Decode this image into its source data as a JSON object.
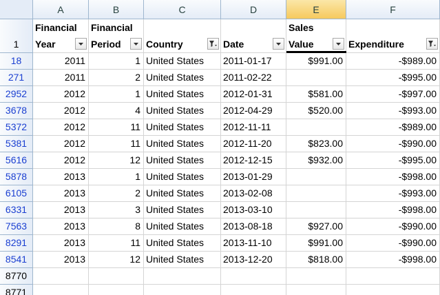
{
  "column_headers": [
    "A",
    "B",
    "C",
    "D",
    "E",
    "F"
  ],
  "header_row": {
    "row_number": "1",
    "cells": [
      {
        "line1": "Financial",
        "line2": "Year",
        "filter": "dropdown"
      },
      {
        "line1": "Financial",
        "line2": "Period",
        "filter": "dropdown"
      },
      {
        "line1": null,
        "line2": "Country",
        "filter": "funnel"
      },
      {
        "line1": null,
        "line2": "Date",
        "filter": "dropdown"
      },
      {
        "line1": "Sales",
        "line2": "Value",
        "filter": "dropdown"
      },
      {
        "line1": null,
        "line2": "Expenditure",
        "filter": "funnel"
      }
    ]
  },
  "rows": [
    {
      "row_number": "18",
      "cells": [
        "2011",
        "1",
        "United States",
        "2011-01-17",
        "$991.00",
        "-$989.00"
      ]
    },
    {
      "row_number": "271",
      "cells": [
        "2011",
        "2",
        "United States",
        "2011-02-22",
        null,
        "-$995.00"
      ]
    },
    {
      "row_number": "2952",
      "cells": [
        "2012",
        "1",
        "United States",
        "2012-01-31",
        "$581.00",
        "-$997.00"
      ]
    },
    {
      "row_number": "3678",
      "cells": [
        "2012",
        "4",
        "United States",
        "2012-04-29",
        "$520.00",
        "-$993.00"
      ]
    },
    {
      "row_number": "5372",
      "cells": [
        "2012",
        "11",
        "United States",
        "2012-11-11",
        null,
        "-$989.00"
      ]
    },
    {
      "row_number": "5381",
      "cells": [
        "2012",
        "11",
        "United States",
        "2012-11-20",
        "$823.00",
        "-$990.00"
      ]
    },
    {
      "row_number": "5616",
      "cells": [
        "2012",
        "12",
        "United States",
        "2012-12-15",
        "$932.00",
        "-$995.00"
      ]
    },
    {
      "row_number": "5878",
      "cells": [
        "2013",
        "1",
        "United States",
        "2013-01-29",
        null,
        "-$998.00"
      ]
    },
    {
      "row_number": "6105",
      "cells": [
        "2013",
        "2",
        "United States",
        "2013-02-08",
        null,
        "-$993.00"
      ]
    },
    {
      "row_number": "6331",
      "cells": [
        "2013",
        "3",
        "United States",
        "2013-03-10",
        null,
        "-$998.00"
      ]
    },
    {
      "row_number": "7563",
      "cells": [
        "2013",
        "8",
        "United States",
        "2013-08-18",
        "$927.00",
        "-$990.00"
      ]
    },
    {
      "row_number": "8291",
      "cells": [
        "2013",
        "11",
        "United States",
        "2013-11-10",
        "$991.00",
        "-$990.00"
      ]
    },
    {
      "row_number": "8541",
      "cells": [
        "2013",
        "12",
        "United States",
        "2013-12-20",
        "$818.00",
        "-$998.00"
      ]
    },
    {
      "row_number": "8770",
      "cells": null
    },
    {
      "row_number": "8771",
      "cells": null
    }
  ],
  "selected_column": "E"
}
